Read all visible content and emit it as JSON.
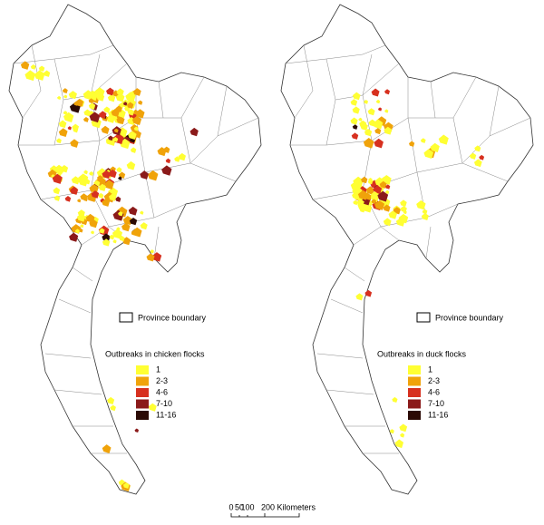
{
  "maps": [
    {
      "legend_title": "Outbreaks in chicken flocks",
      "boundary_label": "Province boundary",
      "classes": [
        {
          "label": "1",
          "color": "#ffff33"
        },
        {
          "label": "2-3",
          "color": "#f0a30a"
        },
        {
          "label": "4-6",
          "color": "#d7301f"
        },
        {
          "label": "7-10",
          "color": "#8b1a1a"
        },
        {
          "label": "11-16",
          "color": "#2b0a05"
        }
      ]
    },
    {
      "legend_title": "Outbreaks in duck flocks",
      "boundary_label": "Province boundary",
      "classes": [
        {
          "label": "1",
          "color": "#ffff33"
        },
        {
          "label": "2-3",
          "color": "#f0a30a"
        },
        {
          "label": "4-6",
          "color": "#d7301f"
        },
        {
          "label": "7-10",
          "color": "#8b1a1a"
        },
        {
          "label": "11-16",
          "color": "#2b0a05"
        }
      ]
    }
  ],
  "scale_bar": {
    "labels": [
      "0",
      "50",
      "100",
      "200 Kilometers"
    ]
  }
}
